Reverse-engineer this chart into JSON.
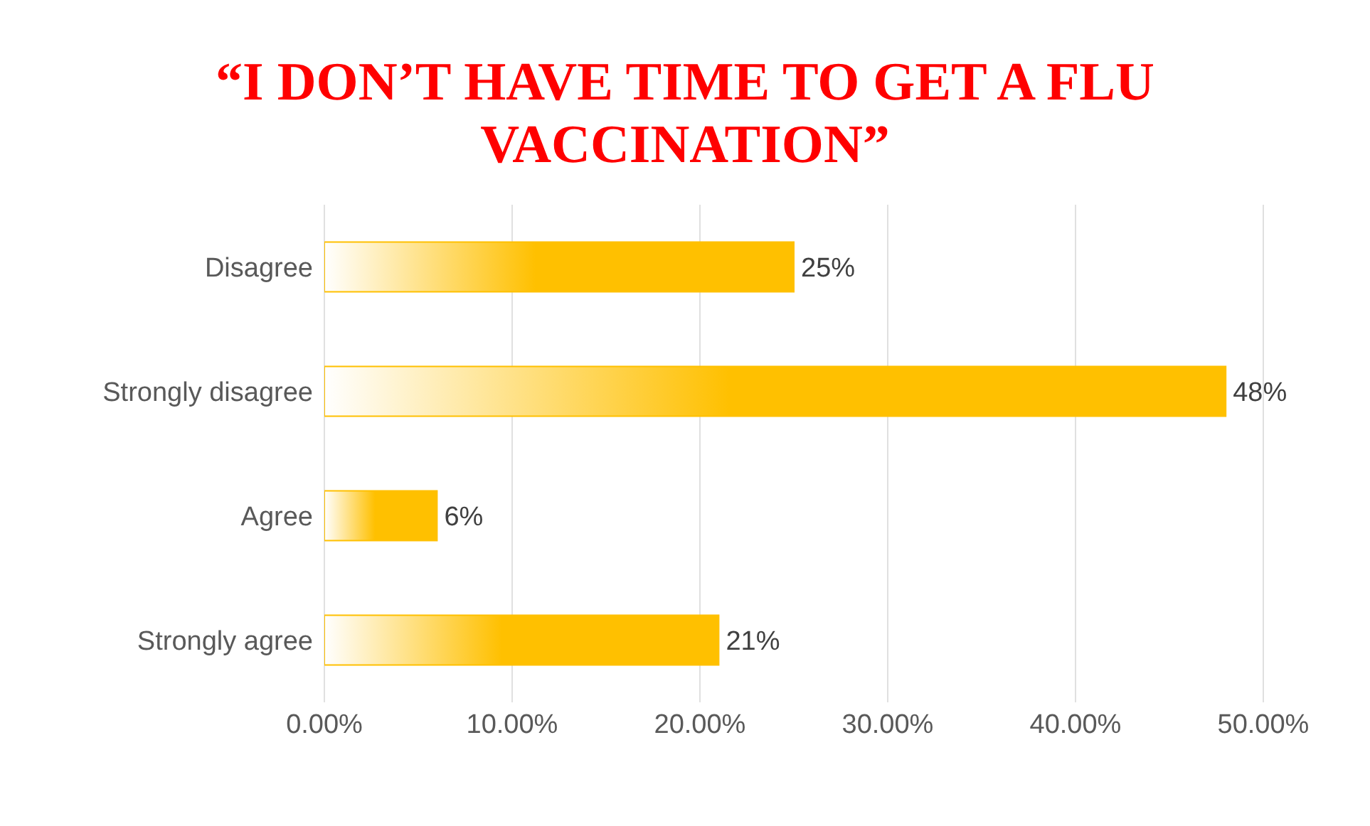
{
  "chart_data": {
    "type": "bar",
    "orientation": "horizontal",
    "title": "“I DON’T HAVE TIME TO GET A FLU VACCINATION”",
    "categories": [
      "Disagree",
      "Strongly disagree",
      "Agree",
      "Strongly agree"
    ],
    "values": [
      25,
      48,
      6,
      21
    ],
    "value_labels": [
      "25%",
      "48%",
      "6%",
      "21%"
    ],
    "color": "#ffc000",
    "xlim": [
      0,
      50
    ],
    "xticks": [
      {
        "value": 0,
        "label": "0.00%"
      },
      {
        "value": 10,
        "label": "10.00%"
      },
      {
        "value": 20,
        "label": "20.00%"
      },
      {
        "value": 30,
        "label": "30.00%"
      },
      {
        "value": 40,
        "label": "40.00%"
      },
      {
        "value": 50,
        "label": "50.00%"
      }
    ],
    "grid": "x",
    "legend": false
  }
}
